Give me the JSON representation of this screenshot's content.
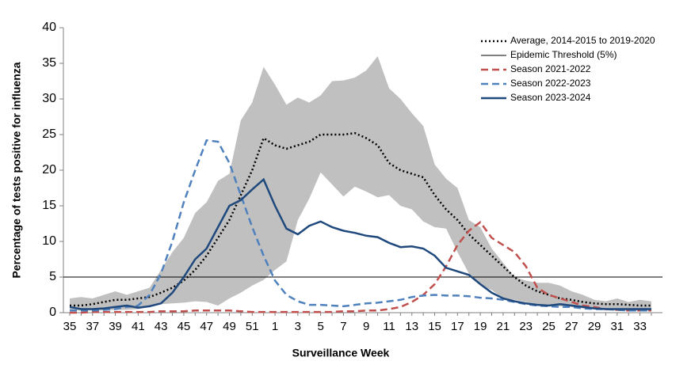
{
  "chart_data": {
    "type": "line",
    "x_label": "Surveillance  Week",
    "y_label": "Percentage of tests positive  for influenza",
    "categories": [
      35,
      null,
      37,
      null,
      39,
      null,
      41,
      null,
      43,
      null,
      45,
      null,
      47,
      null,
      49,
      null,
      51,
      null,
      1,
      null,
      3,
      null,
      5,
      null,
      7,
      null,
      9,
      null,
      11,
      null,
      13,
      null,
      15,
      null,
      17,
      null,
      19,
      null,
      21,
      null,
      23,
      null,
      25,
      null,
      27,
      null,
      29,
      null,
      31,
      null,
      33,
      null
    ],
    "ylim": [
      0,
      40
    ],
    "yticks": [
      0,
      5,
      10,
      15,
      20,
      25,
      30,
      35,
      40
    ],
    "legend": "top-right",
    "band": {
      "color": "#c0c0c0",
      "upper": [
        2,
        2.2,
        2,
        2.5,
        3,
        2.5,
        3,
        3.5,
        6,
        8.5,
        10.5,
        14,
        15.5,
        18.5,
        19.5,
        27,
        29.5,
        34.5,
        32,
        29.2,
        30.2,
        29.5,
        30.5,
        32.5,
        32.6,
        33,
        34,
        36,
        31.5,
        30,
        28,
        26.2,
        20.8,
        18.8,
        17.5,
        13,
        12,
        9,
        7,
        5,
        4.5,
        4.2,
        4.2,
        3.8,
        3,
        2.5,
        1.8,
        1.6,
        2,
        1.5,
        1.8,
        1.6
      ],
      "lower": [
        0.3,
        0.3,
        0.3,
        0.3,
        0.4,
        0.4,
        0.5,
        0.8,
        1.2,
        1.3,
        1.4,
        1.6,
        1.5,
        1.0,
        2,
        2.8,
        3.8,
        4.6,
        6,
        7.2,
        13,
        16,
        19.7,
        18,
        16.3,
        17.7,
        17,
        16.2,
        16.5,
        15,
        14.5,
        12.8,
        12,
        11.8,
        8.5,
        5.5,
        3.8,
        3.2,
        2,
        1.8,
        1.5,
        1.2,
        1.0,
        0.9,
        0.8,
        0.6,
        0.5,
        0.5,
        0.4,
        0.4,
        0.3,
        0.3
      ]
    },
    "threshold": {
      "name": "Epidemic Threshold (5%)",
      "value": 5,
      "color": "#000000"
    },
    "series": [
      {
        "name": "Average, 2014-2015 to 2019-2020",
        "color": "#000000",
        "dash": "dotted",
        "values": [
          1.0,
          1.0,
          1.2,
          1.5,
          1.8,
          1.8,
          2.0,
          2.2,
          2.8,
          3.5,
          4.5,
          6,
          8,
          10.5,
          13,
          16.5,
          20,
          24.5,
          23.5,
          23,
          23.5,
          24,
          25,
          25,
          25,
          25.2,
          24.5,
          23.5,
          21,
          20,
          19.5,
          19,
          16.5,
          14.5,
          13,
          11,
          9.5,
          8,
          6.5,
          5,
          3.8,
          3,
          2.5,
          2,
          1.8,
          1.5,
          1.3,
          1.2,
          1.2,
          1.1,
          1.0,
          1.0
        ]
      },
      {
        "name": "Season 2021-2022",
        "color": "#c0504d",
        "dash": "dashed",
        "values": [
          0,
          0,
          0.1,
          0.1,
          0.1,
          0.1,
          0.1,
          0.1,
          0.2,
          0.2,
          0.2,
          0.3,
          0.3,
          0.3,
          0.3,
          0.2,
          0.1,
          0.1,
          0.1,
          0.1,
          0.1,
          0.1,
          0.1,
          0.1,
          0.2,
          0.2,
          0.3,
          0.3,
          0.5,
          0.8,
          1.5,
          2.5,
          4,
          6.5,
          9.5,
          11.5,
          12.7,
          10.5,
          9.5,
          8.5,
          6.5,
          3.5,
          2.5,
          2,
          1.5,
          1,
          0.8,
          0.5,
          0.4,
          0.3,
          0.3,
          0.3
        ]
      },
      {
        "name": "Season 2022-2023",
        "color": "#4f81bd",
        "dash": "dashed",
        "values": [
          0.3,
          0.3,
          0.3,
          0.4,
          0.5,
          0.8,
          1.0,
          2.5,
          5.5,
          10,
          15.5,
          20,
          24.2,
          24,
          21,
          16.5,
          12,
          8,
          4.5,
          2.5,
          1.6,
          1.1,
          1.1,
          1.0,
          0.9,
          1.1,
          1.3,
          1.4,
          1.6,
          1.8,
          2.2,
          2.4,
          2.5,
          2.4,
          2.4,
          2.3,
          2.1,
          2.0,
          1.8,
          1.5,
          1.2,
          1.0,
          0.9,
          0.8,
          0.8,
          0.6,
          0.5,
          0.5,
          0.4,
          0.3,
          0.3,
          0.3
        ]
      },
      {
        "name": "Season 2023-2024",
        "color": "#1f497d",
        "dash": "solid",
        "values": [
          0.8,
          0.5,
          0.5,
          0.6,
          0.8,
          1.0,
          0.7,
          0.9,
          1.3,
          2.8,
          5,
          7.5,
          9,
          12,
          15,
          15.8,
          17.3,
          18.7,
          15,
          11.8,
          11,
          12.2,
          12.8,
          12,
          11.5,
          11.2,
          10.8,
          10.6,
          9.8,
          9.2,
          9.3,
          9,
          8,
          6.3,
          5.8,
          5.3,
          4,
          2.8,
          2,
          1.6,
          1.3,
          1.1,
          1.0,
          1.2,
          1.0,
          0.8,
          0.6,
          0.5,
          0.5,
          0.5,
          0.5,
          0.5
        ]
      }
    ]
  }
}
